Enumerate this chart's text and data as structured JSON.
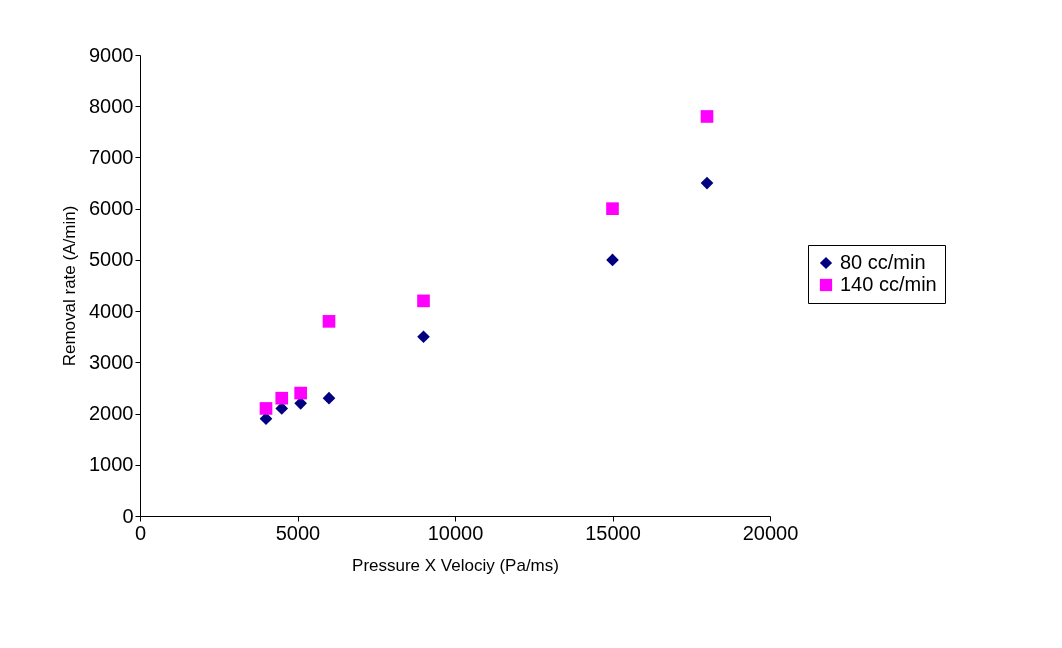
{
  "chart_data": {
    "type": "scatter",
    "xlabel": "Pressure X Velociy (Pa/ms)",
    "ylabel": "Removal rate (A/min)",
    "x": [
      4000,
      4500,
      5100,
      6000,
      9000,
      15000,
      18000
    ],
    "series": [
      {
        "name": "80 cc/min",
        "color": "#000080",
        "marker": "diamond",
        "values": [
          1900,
          2100,
          2200,
          2300,
          3500,
          5000,
          6500
        ]
      },
      {
        "name": "140 cc/min",
        "color": "#ff00ff",
        "marker": "square",
        "values": [
          2100,
          2300,
          2400,
          3800,
          4200,
          6000,
          7800
        ]
      }
    ],
    "xlim": [
      0,
      20000
    ],
    "xticks": [
      0,
      5000,
      10000,
      15000,
      20000
    ],
    "ylim": [
      0,
      9000
    ],
    "yticks": [
      0,
      1000,
      2000,
      3000,
      4000,
      5000,
      6000,
      7000,
      8000,
      9000
    ],
    "grid": false,
    "legend": "right"
  }
}
